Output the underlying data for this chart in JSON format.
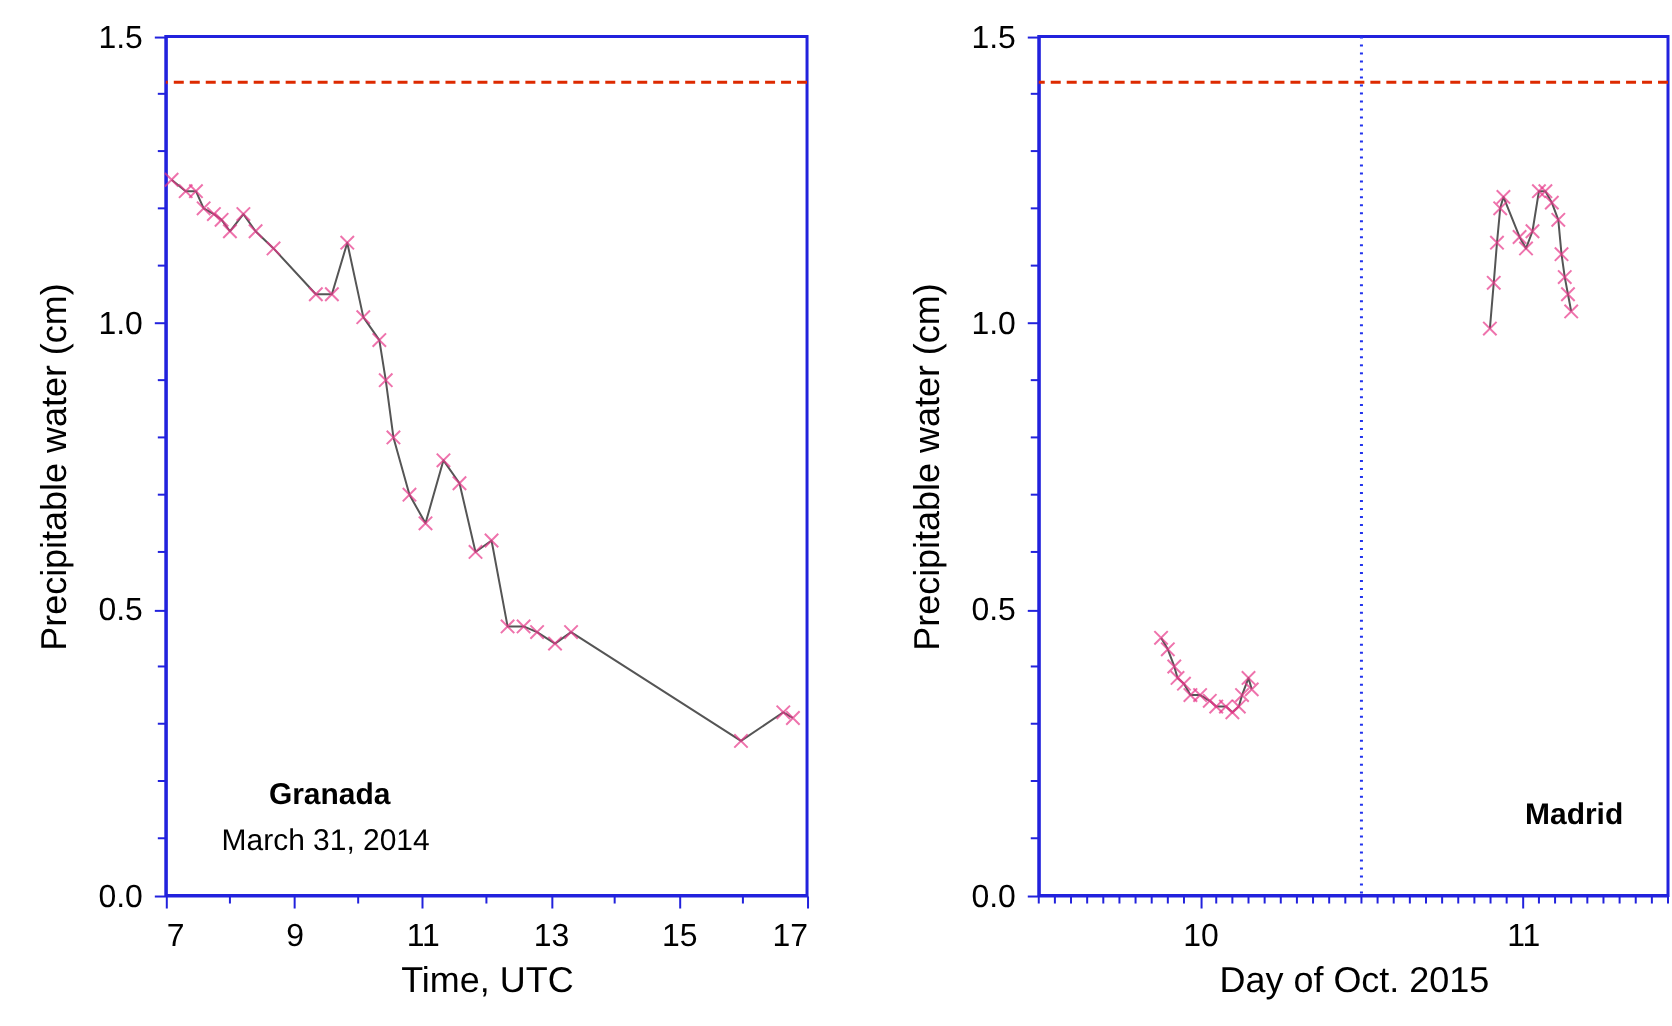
{
  "chart_data": [
    {
      "type": "line",
      "xlabel": "Time, UTC",
      "ylabel": "Precipitable water (cm)",
      "annotations": [
        "Granada",
        "March 31, 2014"
      ],
      "series": [
        {
          "color": "#e8388a",
          "x": [
            7.09,
            7.31,
            7.47,
            7.59,
            7.75,
            7.87,
            8.0,
            8.21,
            8.4,
            8.68,
            9.34,
            9.59,
            9.83,
            10.08,
            10.33,
            10.43,
            10.55,
            10.8,
            11.05,
            11.33,
            11.58,
            11.83,
            12.08,
            12.33,
            12.58,
            12.79,
            13.07,
            13.32,
            15.97,
            16.63,
            16.78
          ],
          "values": [
            1.25,
            1.23,
            1.23,
            1.2,
            1.19,
            1.18,
            1.16,
            1.19,
            1.16,
            1.13,
            1.05,
            1.05,
            1.14,
            1.01,
            0.97,
            0.9,
            0.8,
            0.7,
            0.65,
            0.76,
            0.72,
            0.6,
            0.62,
            0.47,
            0.47,
            0.46,
            0.44,
            0.46,
            0.27,
            0.32,
            0.31
          ]
        }
      ],
      "xlim": [
        7,
        17
      ],
      "xticks": [
        7,
        {
          "value": 8,
          "label": null
        },
        9,
        {
          "value": 10,
          "label": null
        },
        11,
        {
          "value": 12,
          "label": null
        },
        13,
        {
          "value": 14,
          "label": null
        },
        15,
        {
          "value": 16,
          "label": null
        },
        17
      ],
      "ylim": [
        0,
        1.5
      ],
      "yticks": [
        {
          "value": 0,
          "label": "0.0"
        },
        {
          "value": 0.1,
          "label": null
        },
        {
          "value": 0.2,
          "label": null
        },
        {
          "value": 0.3,
          "label": null
        },
        {
          "value": 0.4,
          "label": null
        },
        {
          "value": 0.5,
          "label": "0.5"
        },
        {
          "value": 0.6,
          "label": null
        },
        {
          "value": 0.7,
          "label": null
        },
        {
          "value": 0.8,
          "label": null
        },
        {
          "value": 0.9,
          "label": null
        },
        {
          "value": 1.0,
          "label": "1.0"
        },
        {
          "value": 1.1,
          "label": null
        },
        {
          "value": 1.2,
          "label": null
        },
        {
          "value": 1.3,
          "label": null
        },
        {
          "value": 1.4,
          "label": null
        },
        {
          "value": 1.5,
          "label": "1.5"
        }
      ],
      "ref_lines": [
        {
          "axis": "y",
          "value": 1.42,
          "color": "#dd2a00",
          "line_style": "dashed"
        }
      ],
      "marker": "cross",
      "grid": false
    },
    {
      "type": "line",
      "xlabel": "Day of Oct. 2015",
      "ylabel": "Precipitable water (cm)",
      "annotations": [
        "Madrid"
      ],
      "series": [
        {
          "color": "#e8388a",
          "x": [
            9.879,
            9.9,
            9.92,
            9.93,
            9.95,
            9.97,
            10.0,
            10.03,
            10.05,
            10.08,
            10.1,
            10.12,
            10.13,
            10.15,
            10.16
          ],
          "values": [
            0.45,
            0.43,
            0.4,
            0.38,
            0.37,
            0.35,
            0.35,
            0.34,
            0.33,
            0.33,
            0.32,
            0.33,
            0.35,
            0.38,
            0.36
          ]
        },
        {
          "color": "#e8388a",
          "x": [
            10.898,
            10.91,
            10.92,
            10.93,
            10.94,
            10.99,
            11.01,
            11.03,
            11.05,
            11.07,
            11.09,
            11.11,
            11.12,
            11.13,
            11.14,
            11.15
          ],
          "values": [
            0.99,
            1.07,
            1.14,
            1.2,
            1.22,
            1.15,
            1.13,
            1.16,
            1.23,
            1.23,
            1.21,
            1.18,
            1.12,
            1.08,
            1.05,
            1.02
          ]
        }
      ],
      "xlim": [
        9.5,
        11.45
      ],
      "xticks": [
        {
          "value": 9.5,
          "label": null
        },
        {
          "value": 9.55,
          "label": null
        },
        {
          "value": 9.6,
          "label": null
        },
        {
          "value": 9.65,
          "label": null
        },
        {
          "value": 9.7,
          "label": null
        },
        {
          "value": 9.75,
          "label": null
        },
        {
          "value": 9.8,
          "label": null
        },
        {
          "value": 9.85,
          "label": null
        },
        {
          "value": 9.9,
          "label": null
        },
        {
          "value": 9.95,
          "label": null
        },
        10,
        {
          "value": 10.05,
          "label": null
        },
        {
          "value": 10.1,
          "label": null
        },
        {
          "value": 10.15,
          "label": null
        },
        {
          "value": 10.2,
          "label": null
        },
        {
          "value": 10.25,
          "label": null
        },
        {
          "value": 10.3,
          "label": null
        },
        {
          "value": 10.35,
          "label": null
        },
        {
          "value": 10.4,
          "label": null
        },
        {
          "value": 10.45,
          "label": null
        },
        {
          "value": 10.5,
          "label": null
        },
        {
          "value": 10.55,
          "label": null
        },
        {
          "value": 10.6,
          "label": null
        },
        {
          "value": 10.65,
          "label": null
        },
        {
          "value": 10.7,
          "label": null
        },
        {
          "value": 10.75,
          "label": null
        },
        {
          "value": 10.8,
          "label": null
        },
        {
          "value": 10.85,
          "label": null
        },
        {
          "value": 10.9,
          "label": null
        },
        {
          "value": 10.95,
          "label": null
        },
        11,
        {
          "value": 11.05,
          "label": null
        },
        {
          "value": 11.1,
          "label": null
        },
        {
          "value": 11.15,
          "label": null
        },
        {
          "value": 11.2,
          "label": null
        },
        {
          "value": 11.25,
          "label": null
        },
        {
          "value": 11.3,
          "label": null
        },
        {
          "value": 11.35,
          "label": null
        },
        {
          "value": 11.4,
          "label": null
        },
        {
          "value": 11.45,
          "label": null
        }
      ],
      "ylim": [
        0,
        1.5
      ],
      "yticks": [
        {
          "value": 0,
          "label": "0.0"
        },
        {
          "value": 0.1,
          "label": null
        },
        {
          "value": 0.2,
          "label": null
        },
        {
          "value": 0.3,
          "label": null
        },
        {
          "value": 0.4,
          "label": null
        },
        {
          "value": 0.5,
          "label": "0.5"
        },
        {
          "value": 0.6,
          "label": null
        },
        {
          "value": 0.7,
          "label": null
        },
        {
          "value": 0.8,
          "label": null
        },
        {
          "value": 0.9,
          "label": null
        },
        {
          "value": 1.0,
          "label": "1.0"
        },
        {
          "value": 1.1,
          "label": null
        },
        {
          "value": 1.2,
          "label": null
        },
        {
          "value": 1.3,
          "label": null
        },
        {
          "value": 1.4,
          "label": null
        },
        {
          "value": 1.5,
          "label": "1.5"
        }
      ],
      "ref_lines": [
        {
          "axis": "y",
          "value": 1.42,
          "color": "#dd2a00",
          "line_style": "dashed"
        },
        {
          "axis": "x",
          "value": 10.5,
          "color": "#2233ee",
          "line_style": "dotted"
        }
      ],
      "marker": "cross",
      "grid": false
    }
  ]
}
